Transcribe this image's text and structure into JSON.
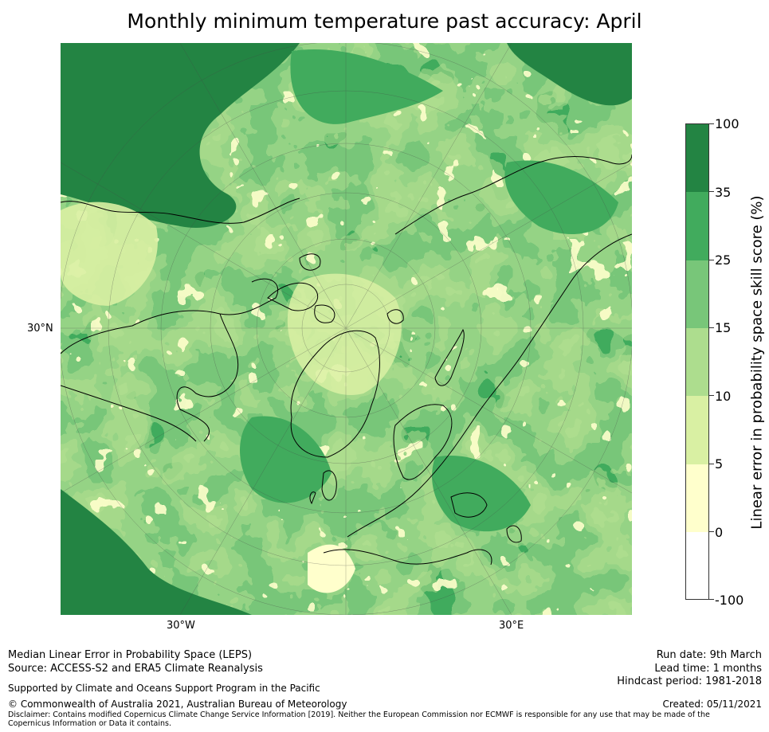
{
  "title": "Monthly minimum temperature past accuracy: April",
  "map": {
    "projection": "north polar stereographic",
    "lat_labels": [
      "30°N"
    ],
    "lon_labels": [
      "30°W",
      "30°E"
    ]
  },
  "colorbar": {
    "title": "Linear error in probability space skill score (%)",
    "ticks": [
      "100",
      "35",
      "25",
      "15",
      "10",
      "5",
      "0",
      "-100"
    ],
    "bins": [
      {
        "range": "35 to 100",
        "color": "#238443"
      },
      {
        "range": "25 to 35",
        "color": "#41ab5d"
      },
      {
        "range": "15 to 25",
        "color": "#78c679"
      },
      {
        "range": "10 to 15",
        "color": "#addd8e"
      },
      {
        "range": "5 to 10",
        "color": "#d9f0a3"
      },
      {
        "range": "0 to 5",
        "color": "#ffffcc"
      },
      {
        "range": "-100 to 0",
        "color": "#ffffff"
      }
    ]
  },
  "footer": {
    "left_line1": "Median Linear Error in Probability Space (LEPS)",
    "left_line2": "Source: ACCESS-S2 and ERA5 Climate Reanalysis",
    "supported": "Supported by Climate and Oceans Support Program in the Pacific",
    "copyright": "© Commonwealth of Australia 2021, Australian Bureau of Meteorology",
    "disclaimer": "Disclaimer: Contains modified Copernicus Climate Change Service Information [2019]. Neither the European Commission nor ECMWF is responsible for any use that may be made of the Copernicus Information or Data it contains.",
    "run_date": "Run date: 9th March",
    "lead_time": "Lead time: 1 months",
    "hindcast": "Hindcast period: 1981-2018",
    "created": "Created: 05/11/2021"
  }
}
